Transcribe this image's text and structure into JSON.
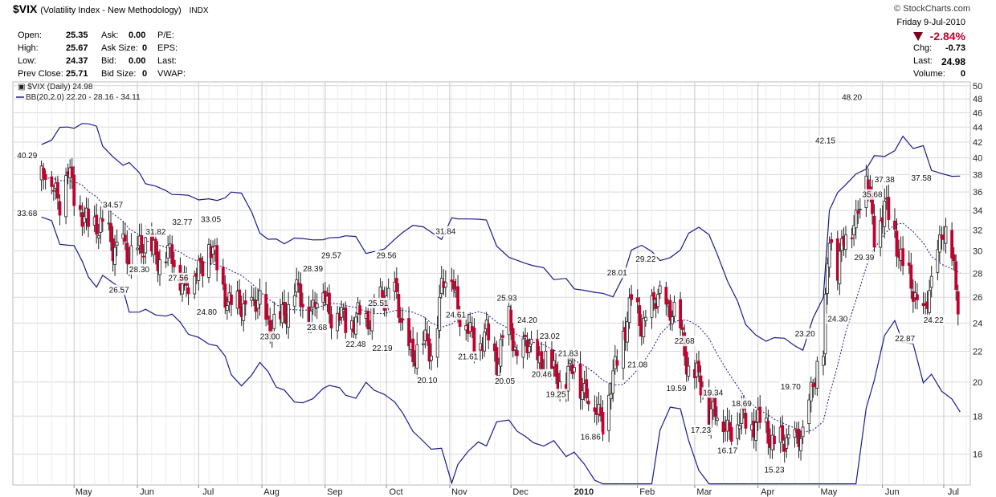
{
  "header": {
    "symbol": "$VIX",
    "name": "(Volatility Index - New Methodology)",
    "exchange": "INDX",
    "brand": "© StockCharts.com"
  },
  "quote": {
    "open_label": "Open:",
    "open": "25.35",
    "high_label": "High:",
    "high": "25.67",
    "low_label": "Low:",
    "low": "24.37",
    "prevclose_label": "Prev Close:",
    "prevclose": "25.71",
    "ask_label": "Ask:",
    "ask": "0.00",
    "asksize_label": "Ask Size:",
    "asksize": "0",
    "bid_label": "Bid:",
    "bid": "0.00",
    "bidsize_label": "Bid Size:",
    "bidsize": "0",
    "pe_label": "P/E:",
    "eps_label": "EPS:",
    "last_label": "Last:",
    "vwap_label": "VWAP:",
    "date": "Friday  9-Jul-2010",
    "pct_change": "-2.84%",
    "chg_label": "Chg:",
    "chg": "-0.73",
    "last2_label": "Last:",
    "last2": "24.98",
    "volume_label": "Volume:",
    "volume": "0"
  },
  "colors": {
    "up": "#ffffff",
    "down": "#c4002e",
    "band": "#1a1a8c",
    "grid": "#d8d8d8",
    "negative": "#c0002b"
  },
  "chart_data": {
    "type": "candlestick",
    "legend": [
      "$VIX (Daily) 24.98",
      "BB(20,2.0) 22.20 - 28.16 - 34.11"
    ],
    "y_scale": "log",
    "y_ticks": [
      16,
      18,
      20,
      22,
      24,
      26,
      28,
      30,
      32,
      34,
      36,
      38,
      40,
      42,
      44,
      46,
      48,
      50
    ],
    "x_labels": [
      "May",
      "Jun",
      "Jul",
      "Aug",
      "Sep",
      "Oct",
      "Nov",
      "Dec",
      "2010",
      "Feb",
      "Mar",
      "Apr",
      "May",
      "Jun",
      "Jul"
    ],
    "series_close": [
      {
        "date": "2009-04-15",
        "value": 37.5
      },
      {
        "date": "2009-04-20",
        "value": 38.0
      },
      {
        "date": "2009-04-24",
        "value": 35.0
      },
      {
        "date": "2009-04-28",
        "value": 38.5
      },
      {
        "date": "2009-05-01",
        "value": 36.0
      },
      {
        "date": "2009-05-05",
        "value": 33.5
      },
      {
        "date": "2009-05-08",
        "value": 32.0
      },
      {
        "date": "2009-05-12",
        "value": 33.0
      },
      {
        "date": "2009-05-15",
        "value": 32.5
      },
      {
        "date": "2009-05-20",
        "value": 30.0
      },
      {
        "date": "2009-05-25",
        "value": 31.0
      },
      {
        "date": "2009-05-28",
        "value": 28.5
      },
      {
        "date": "2009-06-02",
        "value": 31.0
      },
      {
        "date": "2009-06-05",
        "value": 30.5
      },
      {
        "date": "2009-06-10",
        "value": 29.5
      },
      {
        "date": "2009-06-15",
        "value": 30.0
      },
      {
        "date": "2009-06-18",
        "value": 29.0
      },
      {
        "date": "2009-06-22",
        "value": 28.0
      },
      {
        "date": "2009-06-26",
        "value": 27.0
      },
      {
        "date": "2009-07-01",
        "value": 28.5
      },
      {
        "date": "2009-07-06",
        "value": 30.5
      },
      {
        "date": "2009-07-10",
        "value": 28.5
      },
      {
        "date": "2009-07-14",
        "value": 26.5
      },
      {
        "date": "2009-07-17",
        "value": 25.0
      },
      {
        "date": "2009-07-22",
        "value": 25.5
      },
      {
        "date": "2009-07-27",
        "value": 25.0
      },
      {
        "date": "2009-07-31",
        "value": 25.5
      },
      {
        "date": "2009-08-04",
        "value": 24.0
      },
      {
        "date": "2009-08-08",
        "value": 23.5
      },
      {
        "date": "2009-08-12",
        "value": 25.0
      },
      {
        "date": "2009-08-17",
        "value": 26.5
      },
      {
        "date": "2009-08-21",
        "value": 25.5
      },
      {
        "date": "2009-08-26",
        "value": 25.0
      },
      {
        "date": "2009-08-31",
        "value": 27.0
      },
      {
        "date": "2009-09-03",
        "value": 25.0
      },
      {
        "date": "2009-09-08",
        "value": 24.5
      },
      {
        "date": "2009-09-11",
        "value": 24.0
      },
      {
        "date": "2009-09-16",
        "value": 24.5
      },
      {
        "date": "2009-09-21",
        "value": 24.0
      },
      {
        "date": "2009-09-25",
        "value": 25.5
      },
      {
        "date": "2009-09-30",
        "value": 25.5
      },
      {
        "date": "2009-10-05",
        "value": 27.0
      },
      {
        "date": "2009-10-09",
        "value": 23.0
      },
      {
        "date": "2009-10-14",
        "value": 22.0
      },
      {
        "date": "2009-10-19",
        "value": 22.5
      },
      {
        "date": "2009-10-23",
        "value": 22.0
      },
      {
        "date": "2009-10-28",
        "value": 26.5
      },
      {
        "date": "2009-11-02",
        "value": 28.5
      },
      {
        "date": "2009-11-05",
        "value": 25.0
      },
      {
        "date": "2009-11-10",
        "value": 23.5
      },
      {
        "date": "2009-11-15",
        "value": 22.5
      },
      {
        "date": "2009-11-19",
        "value": 23.0
      },
      {
        "date": "2009-11-24",
        "value": 21.5
      },
      {
        "date": "2009-11-30",
        "value": 24.0
      },
      {
        "date": "2009-12-04",
        "value": 21.5
      },
      {
        "date": "2009-12-08",
        "value": 22.5
      },
      {
        "date": "2009-12-12",
        "value": 21.5
      },
      {
        "date": "2009-12-17",
        "value": 21.5
      },
      {
        "date": "2009-12-22",
        "value": 20.5
      },
      {
        "date": "2009-12-28",
        "value": 20.0
      },
      {
        "date": "2010-01-01",
        "value": 21.0
      },
      {
        "date": "2010-01-06",
        "value": 19.5
      },
      {
        "date": "2010-01-11",
        "value": 18.5
      },
      {
        "date": "2010-01-15",
        "value": 18.0
      },
      {
        "date": "2010-01-20",
        "value": 20.0
      },
      {
        "date": "2010-01-25",
        "value": 23.5
      },
      {
        "date": "2010-01-29",
        "value": 25.5
      },
      {
        "date": "2010-02-03",
        "value": 24.0
      },
      {
        "date": "2010-02-08",
        "value": 25.0
      },
      {
        "date": "2010-02-12",
        "value": 26.0
      },
      {
        "date": "2010-02-17",
        "value": 25.0
      },
      {
        "date": "2010-02-22",
        "value": 23.5
      },
      {
        "date": "2010-02-26",
        "value": 21.0
      },
      {
        "date": "2010-03-03",
        "value": 20.0
      },
      {
        "date": "2010-03-08",
        "value": 18.5
      },
      {
        "date": "2010-03-12",
        "value": 18.0
      },
      {
        "date": "2010-03-17",
        "value": 17.5
      },
      {
        "date": "2010-03-22",
        "value": 17.5
      },
      {
        "date": "2010-03-26",
        "value": 18.0
      },
      {
        "date": "2010-03-31",
        "value": 17.5
      },
      {
        "date": "2010-04-05",
        "value": 17.5
      },
      {
        "date": "2010-04-09",
        "value": 16.5
      },
      {
        "date": "2010-04-14",
        "value": 16.5
      },
      {
        "date": "2010-04-19",
        "value": 17.0
      },
      {
        "date": "2010-04-23",
        "value": 16.5
      },
      {
        "date": "2010-04-28",
        "value": 20.5
      },
      {
        "date": "2010-05-03",
        "value": 21.5
      },
      {
        "date": "2010-05-06",
        "value": 32.0
      },
      {
        "date": "2010-05-10",
        "value": 28.5
      },
      {
        "date": "2010-05-14",
        "value": 31.5
      },
      {
        "date": "2010-05-19",
        "value": 33.5
      },
      {
        "date": "2010-05-24",
        "value": 38.0
      },
      {
        "date": "2010-05-28",
        "value": 32.0
      },
      {
        "date": "2010-06-02",
        "value": 34.0
      },
      {
        "date": "2010-06-07",
        "value": 32.0
      },
      {
        "date": "2010-06-11",
        "value": 28.5
      },
      {
        "date": "2010-06-16",
        "value": 26.5
      },
      {
        "date": "2010-06-21",
        "value": 24.5
      },
      {
        "date": "2010-06-25",
        "value": 26.5
      },
      {
        "date": "2010-06-30",
        "value": 32.5
      },
      {
        "date": "2010-07-05",
        "value": 29.0
      },
      {
        "date": "2010-07-09",
        "value": 24.98
      }
    ],
    "annotations": [
      {
        "date": "2009-04-08",
        "value": 40.29,
        "label": "40.29"
      },
      {
        "date": "2009-04-08",
        "value": 33.68,
        "label": "33.68"
      },
      {
        "date": "2009-05-20",
        "value": 34.57,
        "label": "34.57"
      },
      {
        "date": "2009-06-02",
        "value": 28.3,
        "label": "28.30"
      },
      {
        "date": "2009-05-23",
        "value": 26.57,
        "label": "26.57"
      },
      {
        "date": "2009-06-10",
        "value": 31.82,
        "label": "31.82"
      },
      {
        "date": "2009-06-23",
        "value": 32.77,
        "label": "32.77"
      },
      {
        "date": "2009-06-21",
        "value": 27.56,
        "label": "27.56"
      },
      {
        "date": "2009-07-07",
        "value": 33.05,
        "label": "33.05"
      },
      {
        "date": "2009-07-05",
        "value": 24.8,
        "label": "24.80"
      },
      {
        "date": "2009-08-05",
        "value": 23.0,
        "label": "23.00"
      },
      {
        "date": "2009-08-26",
        "value": 28.39,
        "label": "28.39"
      },
      {
        "date": "2009-08-28",
        "value": 23.68,
        "label": "23.68"
      },
      {
        "date": "2009-09-04",
        "value": 29.57,
        "label": "29.57"
      },
      {
        "date": "2009-09-16",
        "value": 22.48,
        "label": "22.48"
      },
      {
        "date": "2009-09-27",
        "value": 25.51,
        "label": "25.51"
      },
      {
        "date": "2009-09-29",
        "value": 22.19,
        "label": "22.19"
      },
      {
        "date": "2009-10-01",
        "value": 29.56,
        "label": "29.56"
      },
      {
        "date": "2009-10-21",
        "value": 20.1,
        "label": "20.10"
      },
      {
        "date": "2009-10-30",
        "value": 31.84,
        "label": "31.84"
      },
      {
        "date": "2009-11-04",
        "value": 24.61,
        "label": "24.61"
      },
      {
        "date": "2009-11-10",
        "value": 21.61,
        "label": "21.61"
      },
      {
        "date": "2009-11-29",
        "value": 25.93,
        "label": "25.93"
      },
      {
        "date": "2009-11-28",
        "value": 20.05,
        "label": "20.05"
      },
      {
        "date": "2009-12-09",
        "value": 24.2,
        "label": "24.20"
      },
      {
        "date": "2009-12-16",
        "value": 20.46,
        "label": "20.46"
      },
      {
        "date": "2009-12-20",
        "value": 23.02,
        "label": "23.02"
      },
      {
        "date": "2009-12-23",
        "value": 19.25,
        "label": "19.25"
      },
      {
        "date": "2009-12-29",
        "value": 21.83,
        "label": "21.83"
      },
      {
        "date": "2010-01-09",
        "value": 16.86,
        "label": "16.86"
      },
      {
        "date": "2010-01-22",
        "value": 28.01,
        "label": "28.01"
      },
      {
        "date": "2010-02-01",
        "value": 21.08,
        "label": "21.08"
      },
      {
        "date": "2010-02-05",
        "value": 29.22,
        "label": "29.22"
      },
      {
        "date": "2010-02-20",
        "value": 19.59,
        "label": "19.59"
      },
      {
        "date": "2010-02-24",
        "value": 22.68,
        "label": "22.68"
      },
      {
        "date": "2010-03-04",
        "value": 17.23,
        "label": "17.23"
      },
      {
        "date": "2010-03-10",
        "value": 19.34,
        "label": "19.34"
      },
      {
        "date": "2010-03-17",
        "value": 16.17,
        "label": "16.17"
      },
      {
        "date": "2010-03-24",
        "value": 18.69,
        "label": "18.69"
      },
      {
        "date": "2010-04-09",
        "value": 15.23,
        "label": "15.23"
      },
      {
        "date": "2010-04-17",
        "value": 19.7,
        "label": "19.70"
      },
      {
        "date": "2010-04-24",
        "value": 23.2,
        "label": "23.20"
      },
      {
        "date": "2010-05-04",
        "value": 42.15,
        "label": "42.15"
      },
      {
        "date": "2010-05-10",
        "value": 24.3,
        "label": "24.30"
      },
      {
        "date": "2010-05-17",
        "value": 48.2,
        "label": "48.20"
      },
      {
        "date": "2010-05-23",
        "value": 29.39,
        "label": "29.39"
      },
      {
        "date": "2010-05-27",
        "value": 35.68,
        "label": "35.68"
      },
      {
        "date": "2010-06-02",
        "value": 37.38,
        "label": "37.38"
      },
      {
        "date": "2010-06-12",
        "value": 22.87,
        "label": "22.87"
      },
      {
        "date": "2010-06-20",
        "value": 37.58,
        "label": "37.58"
      },
      {
        "date": "2010-06-26",
        "value": 24.22,
        "label": "24.22"
      }
    ]
  }
}
